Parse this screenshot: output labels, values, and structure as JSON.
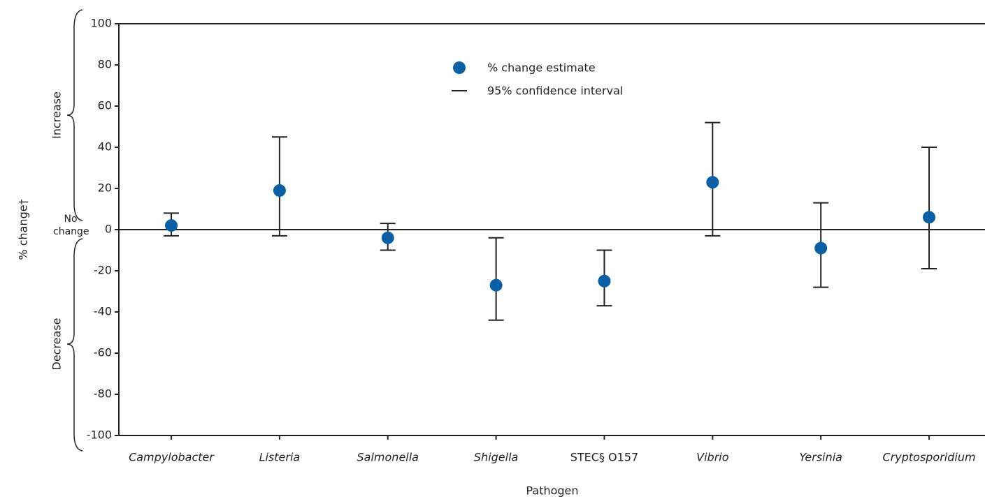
{
  "chart_data": {
    "type": "errorbar",
    "y_label": "% change†",
    "x_label": "Pathogen",
    "annotations": {
      "increase": "Increase",
      "decrease": "Decrease",
      "no_change": "No change"
    },
    "categories": [
      "Campylobacter",
      "Listeria",
      "Salmonella",
      "Shigella",
      "STEC§ O157",
      "Vibrio",
      "Yersinia",
      "Cryptosporidium"
    ],
    "italic_categories": [
      true,
      true,
      true,
      true,
      false,
      true,
      true,
      true
    ],
    "series": [
      {
        "name": "% change estimate",
        "color": "#0b5fa5",
        "values": [
          2,
          19,
          -4,
          -27,
          -25,
          23,
          -9,
          6
        ],
        "ci_name": "95% confidence interval",
        "ci_lower": [
          -3,
          -3,
          -10,
          -44,
          -37,
          -3,
          -28,
          -19
        ],
        "ci_upper": [
          8,
          45,
          3,
          -4,
          -10,
          52,
          13,
          40
        ]
      }
    ],
    "ylim": [
      -100,
      100
    ],
    "yticks": [
      -100,
      -80,
      -60,
      -40,
      -20,
      0,
      20,
      40,
      60,
      80,
      100
    ]
  }
}
